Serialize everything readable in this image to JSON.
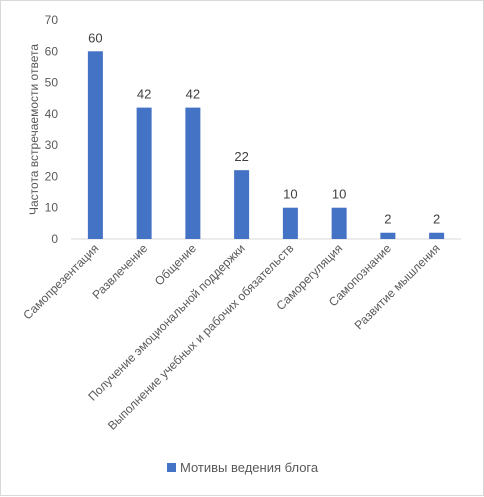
{
  "chart_data": {
    "type": "bar",
    "title": "",
    "xlabel": "",
    "ylabel": "Частота встречаемости ответа",
    "ylim": [
      0,
      70
    ],
    "yticks": [
      0,
      10,
      20,
      30,
      40,
      50,
      60,
      70
    ],
    "grid": false,
    "legend_position": "bottom",
    "categories": [
      "Самопрезентация",
      "Развлечение",
      "Общение",
      "Получение эмоциональной поддержки",
      "Выполнение учебных и рабочих обязательств",
      "Саморегуляция",
      "Самопознание",
      "Развитие мышления"
    ],
    "series": [
      {
        "name": "Мотивы ведения блога",
        "color": "#4472c4",
        "values": [
          60,
          42,
          42,
          22,
          10,
          10,
          2,
          2
        ]
      }
    ]
  }
}
